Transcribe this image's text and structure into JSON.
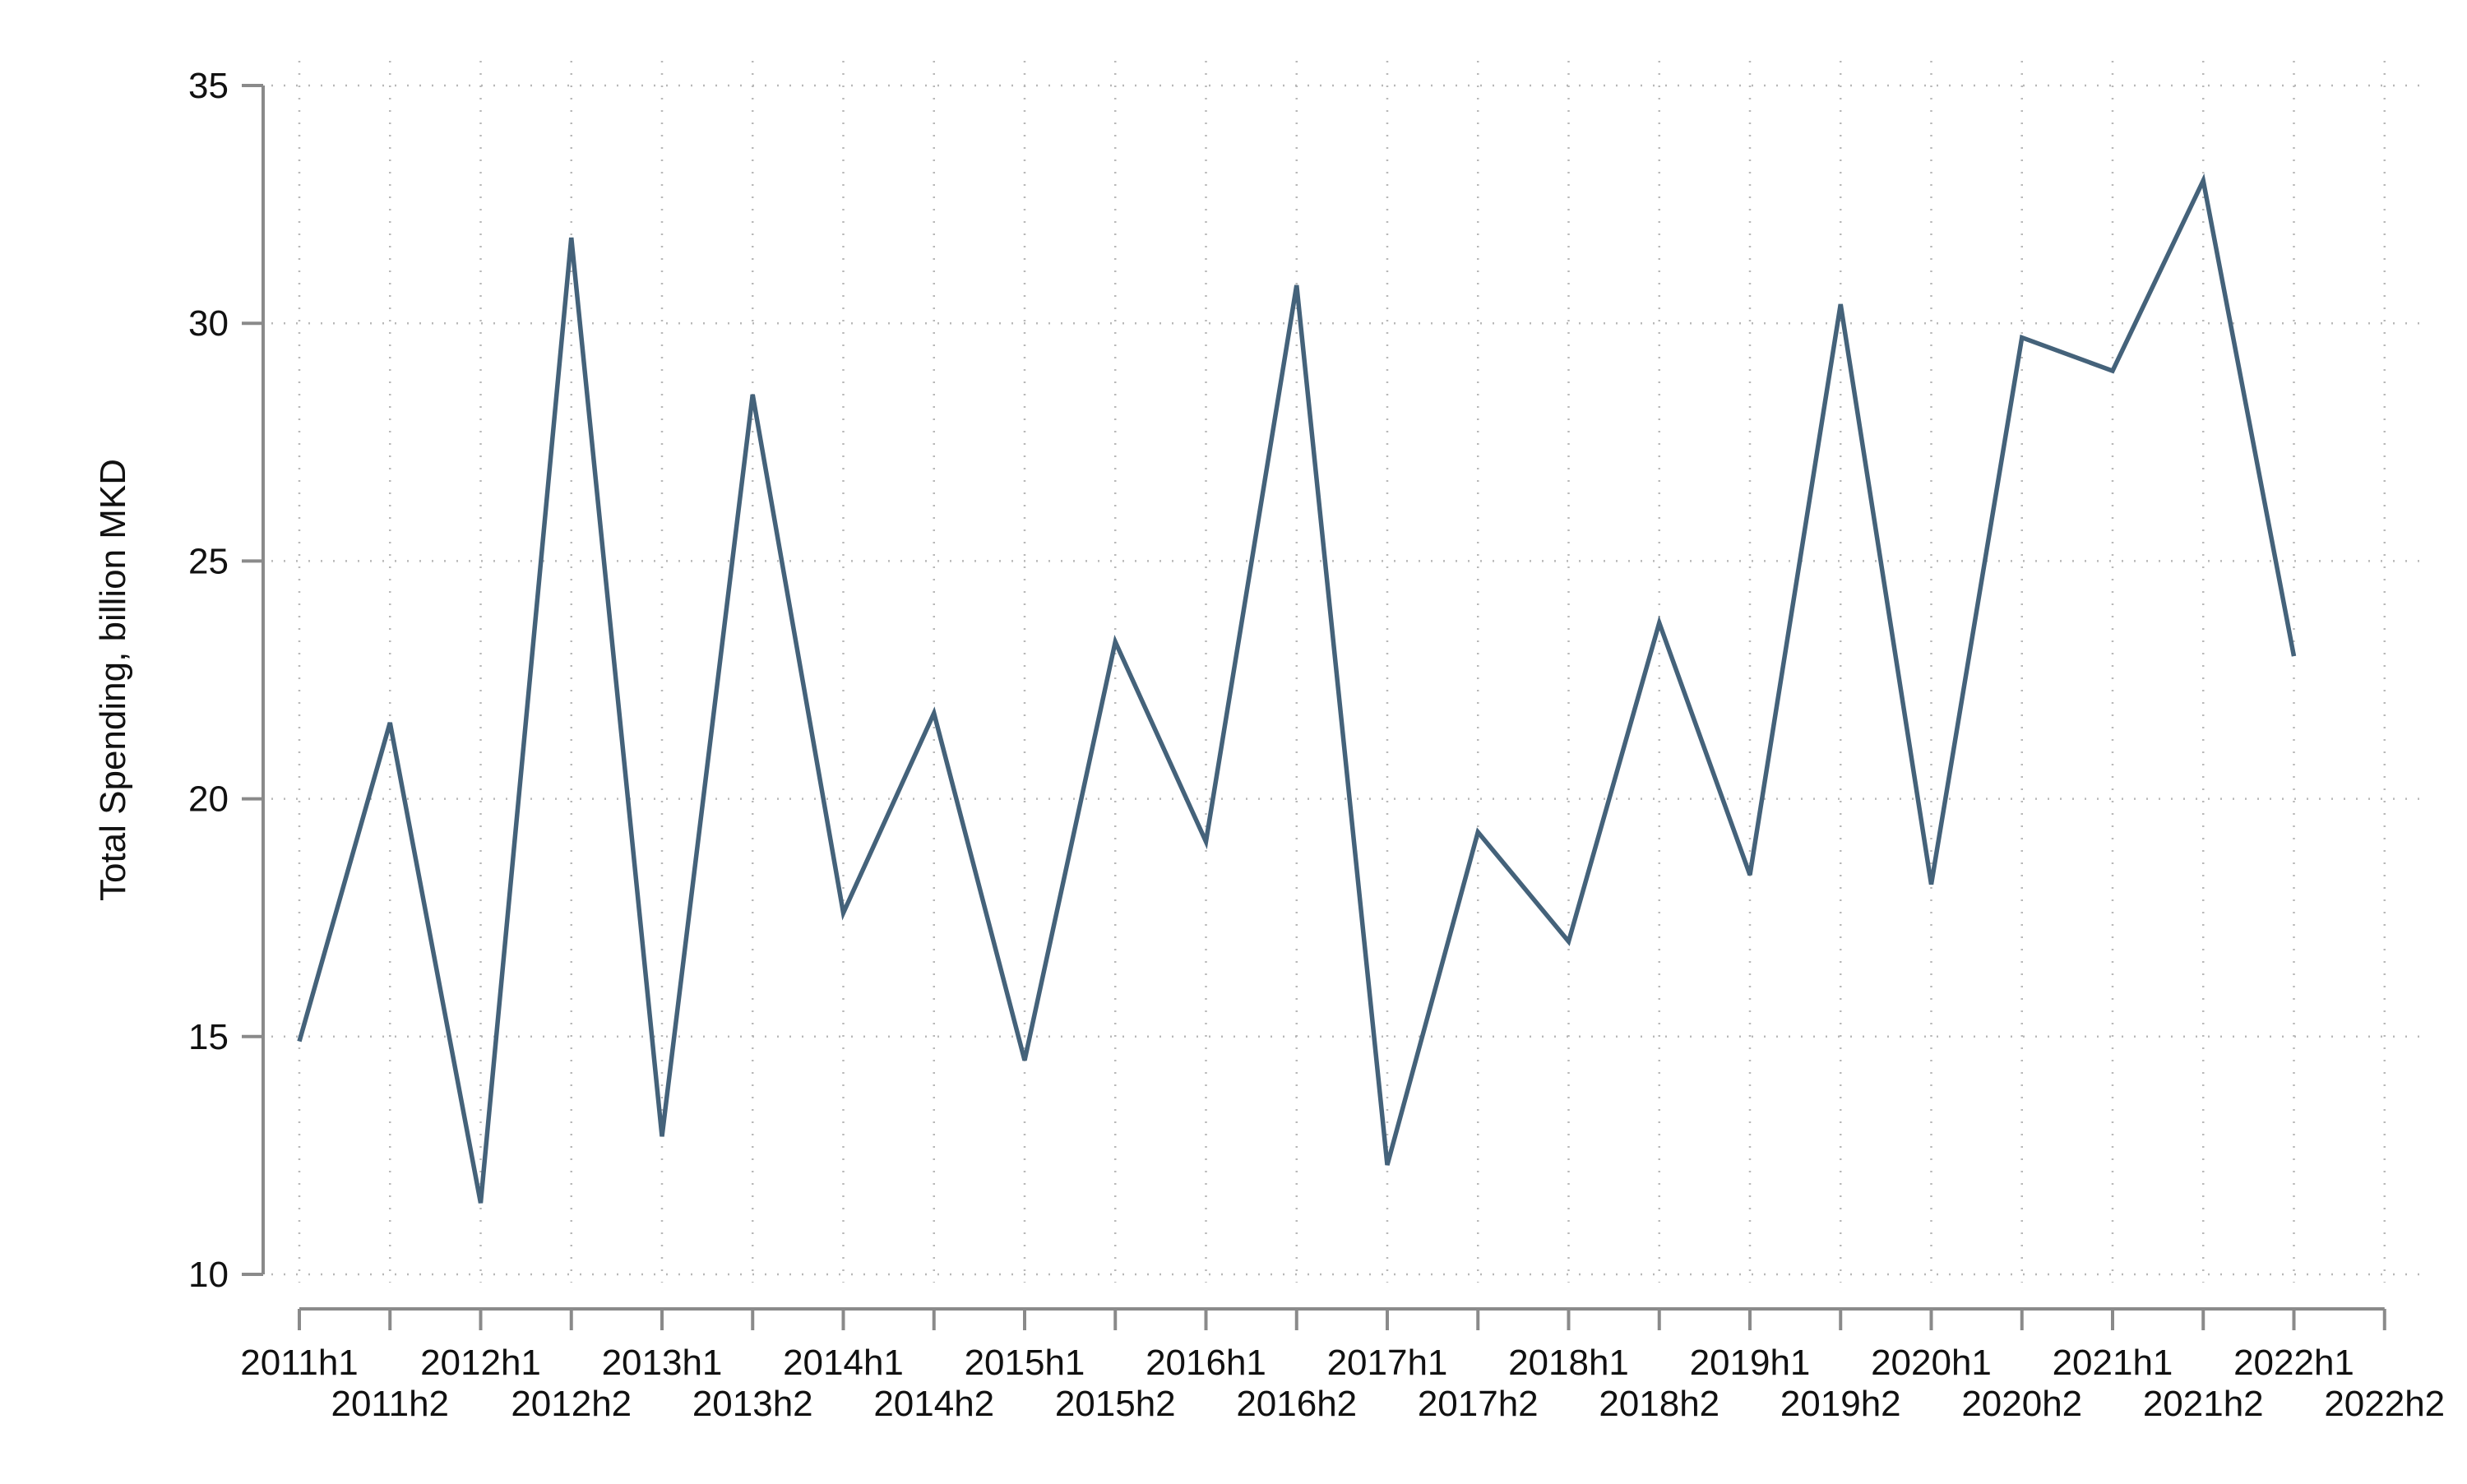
{
  "chart_data": {
    "type": "line",
    "title": "",
    "xlabel": "",
    "ylabel": "Total Spending, billion MKD",
    "ylim": [
      10,
      35
    ],
    "yticks": [
      10,
      15,
      20,
      25,
      30,
      35
    ],
    "grid": true,
    "legend": "none",
    "line_color": "#44627a",
    "categories": [
      "2011h1",
      "2011h2",
      "2012h1",
      "2012h2",
      "2013h1",
      "2013h2",
      "2014h1",
      "2014h2",
      "2015h1",
      "2015h2",
      "2016h1",
      "2016h2",
      "2017h1",
      "2017h2",
      "2018h1",
      "2018h2",
      "2019h1",
      "2019h2",
      "2020h1",
      "2020h2",
      "2021h1",
      "2021h2",
      "2022h1",
      "2022h2"
    ],
    "series": [
      {
        "values": [
          14.9,
          21.6,
          11.5,
          31.8,
          12.9,
          28.5,
          17.6,
          21.8,
          14.5,
          23.3,
          19.1,
          30.8,
          12.3,
          19.3,
          17.0,
          23.7,
          18.4,
          30.4,
          18.2,
          29.7,
          29.0,
          33.0,
          23.0,
          null
        ]
      }
    ]
  }
}
